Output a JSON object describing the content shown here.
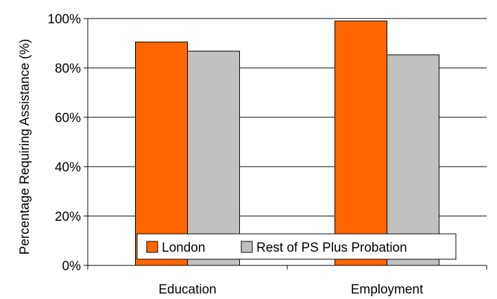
{
  "chart_data": {
    "type": "bar",
    "title": "",
    "xlabel": "",
    "ylabel": "Percentage Requiring Assistance (%)",
    "categories": [
      "Education",
      "Employment"
    ],
    "series": [
      {
        "name": "London",
        "values": [
          90.5,
          99
        ],
        "color": "#FF6600"
      },
      {
        "name": "Rest of PS Plus Probation",
        "values": [
          86.8,
          85.3
        ],
        "color": "#C0C0C0"
      }
    ],
    "ylim": [
      0,
      100
    ],
    "y_ticks": [
      0,
      20,
      40,
      60,
      80,
      100
    ],
    "y_tick_labels": [
      "0%",
      "20%",
      "40%",
      "60%",
      "80%",
      "100%"
    ],
    "grid": true,
    "legend_position": "bottom-inside"
  }
}
